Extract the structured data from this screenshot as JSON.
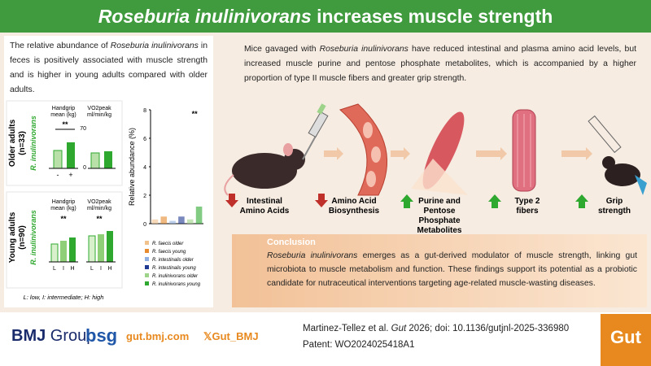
{
  "title": {
    "italic": "Roseburia inulinivorans",
    "rest": " increases muscle strength"
  },
  "left_panel": {
    "intro": {
      "a": "The relative abundance of ",
      "b": "Roseburia inulinivorans",
      "c": " in feces is positively associated with muscle strength and is higher in young adults compared with older adults."
    },
    "older": {
      "group": "Older adults",
      "n": "(n=33)",
      "species": "R. inulinivorans",
      "handgrip": "Handgrip",
      "handgrip_unit": "mean (kg)",
      "vo2": "VO2peak",
      "vo2_unit": "ml/min/kg",
      "sig": "**",
      "vo2_tick_top": "70",
      "vo2_tick_bottom": "0",
      "minus": "-",
      "plus": "+"
    },
    "young": {
      "group": "Young adults",
      "n": "(n=90)",
      "species": "R. inulinivorans",
      "handgrip": "Handgrip",
      "handgrip_unit": "mean (kg)",
      "vo2": "VO2peak",
      "vo2_unit": "ml/min/kg",
      "sig1": "**",
      "sig2": "**",
      "levels1": [
        "L",
        "I",
        "H"
      ],
      "levels2": [
        "L",
        "I",
        "H"
      ]
    },
    "key": "L: low, I: intermediate; H: high",
    "abundance": {
      "ylabel": "Relative abundance (%)",
      "ylim": [
        0,
        8
      ],
      "yticks": [
        0,
        2,
        4,
        6,
        8
      ],
      "sig": "**",
      "series": [
        {
          "name": "R. faecis older",
          "color": "#f2c28c",
          "value": 0.3
        },
        {
          "name": "R. faecis young",
          "color": "#e88a2e",
          "value": 0.5
        },
        {
          "name": "R. intestinalis older",
          "color": "#8fb0e0",
          "value": 0.2
        },
        {
          "name": "R. intestinalis young",
          "color": "#1f3a93",
          "value": 0.5
        },
        {
          "name": "R. inulinivorans older",
          "color": "#9ed38a",
          "value": 0.3
        },
        {
          "name": "R. inulinivorans young",
          "color": "#2fa82f",
          "value": 1.2
        }
      ]
    }
  },
  "summary": {
    "a": "Mice gavaged with ",
    "b": "Roseburia inulinivorans",
    "c": " have reduced intestinal and plasma amino acid levels, but increased muscle purine and pentose phosphate metabolites, which is accompanied by a higher proportion of type II muscle fibers and greater grip strength."
  },
  "effects": [
    {
      "label": "Intestinal Amino Acids",
      "direction": "down"
    },
    {
      "label": "Amino Acid Biosynthesis",
      "direction": "down"
    },
    {
      "label": "Purine and Pentose Phosphate Metabolites",
      "direction": "up"
    },
    {
      "label": "Type 2 fibers",
      "direction": "up"
    },
    {
      "label": "Grip strength",
      "direction": "up"
    }
  ],
  "conclusion": {
    "heading": "Conclusion",
    "a": "Roseburia inulinivorans",
    "b": " emerges as a gut-derived modulator of muscle strength, linking gut microbiota to muscle metabolism and function. These findings support its potential as a probiotic candidate for nutraceutical interventions targeting age-related muscle-wasting diseases."
  },
  "footer": {
    "bmj": "BMJ",
    "group": "Group",
    "bsg": "bsg",
    "site": "gut.bmj.com",
    "x_icon": "𝕏",
    "handle": "Gut_BMJ",
    "citation_a": "Martinez-Tellez et al. ",
    "citation_journal": "Gut",
    "citation_b": " 2026; doi: 10.1136/gutjnl-2025-336980",
    "patent": "Patent: WO2024025418A1",
    "journal_logo": "Gut"
  }
}
